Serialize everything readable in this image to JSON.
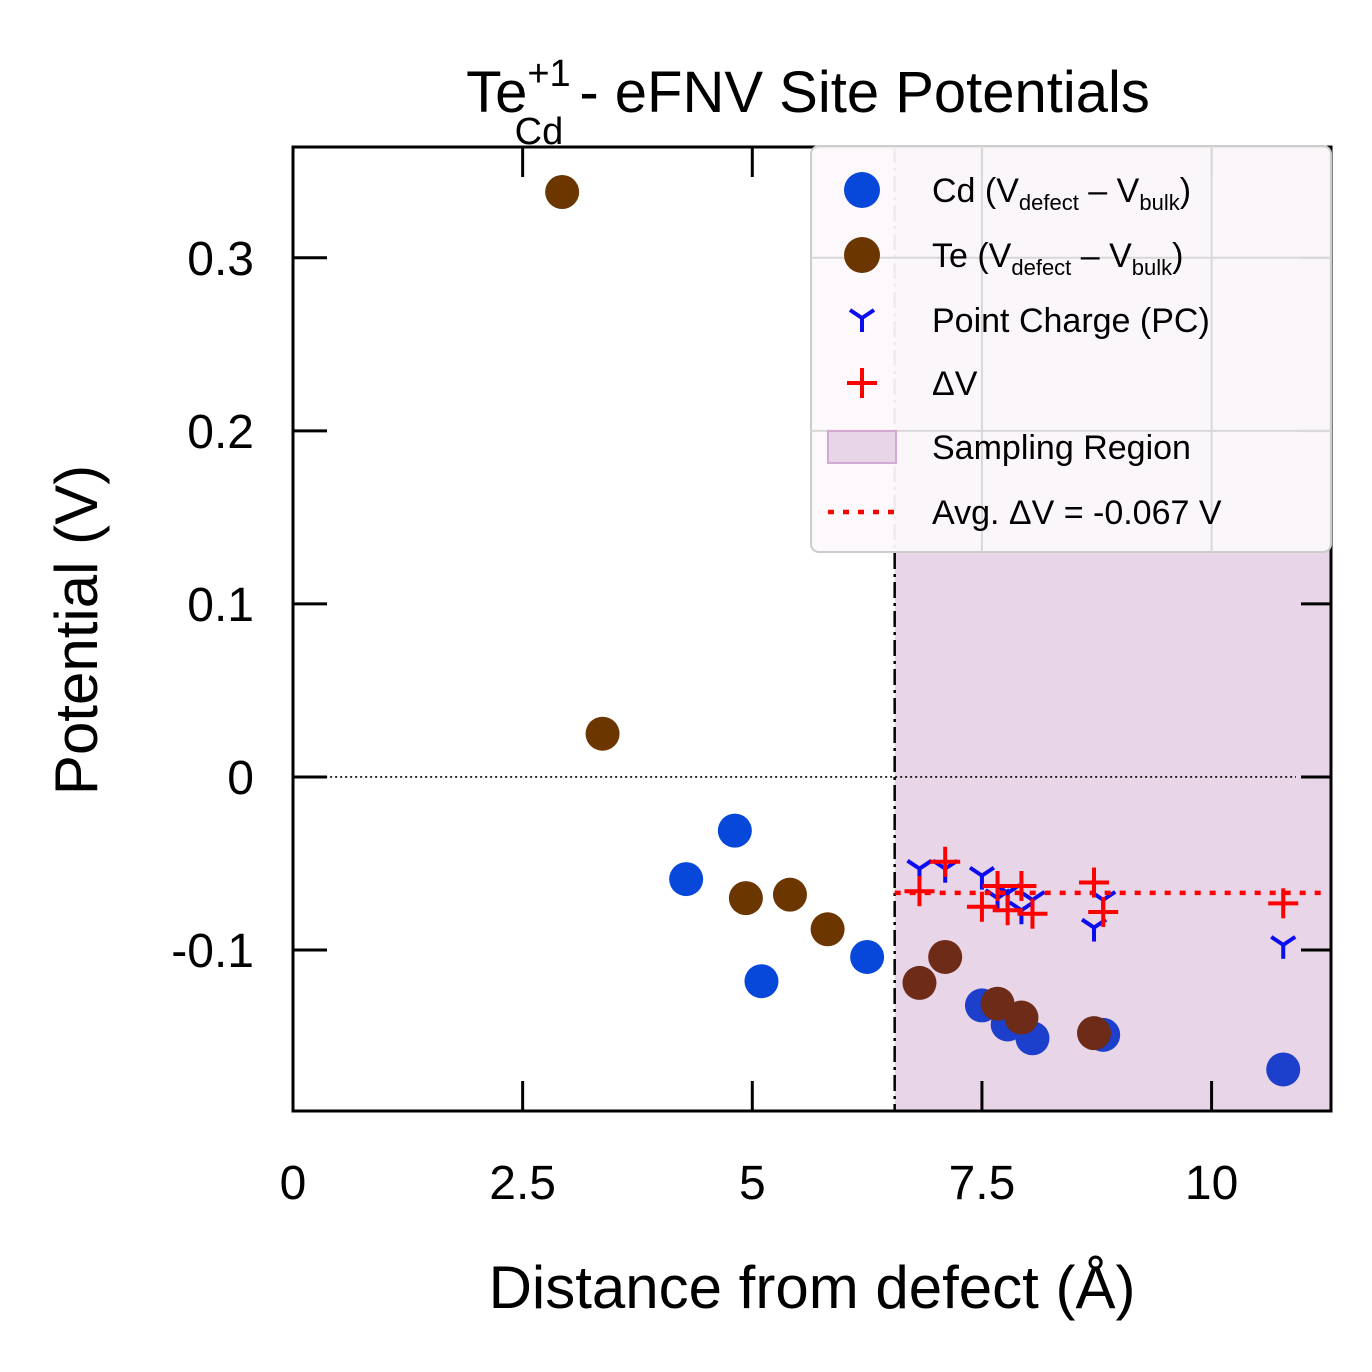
{
  "chart_data": {
    "type": "scatter",
    "title": {
      "base": "Te",
      "superscript": "+1",
      "subscript": "Cd",
      "rest": " - eFNV Site Potentials"
    },
    "xlabel": "Distance from defect (Å)",
    "ylabel": "Potential (V)",
    "xlim": [
      0,
      11.3
    ],
    "ylim": [
      -0.193,
      0.364
    ],
    "x_ticks": [
      {
        "value": 0,
        "label": "0"
      },
      {
        "value": 2.5,
        "label": "2.5"
      },
      {
        "value": 5,
        "label": "5"
      },
      {
        "value": 7.5,
        "label": "7.5"
      },
      {
        "value": 10,
        "label": "10"
      }
    ],
    "y_ticks": [
      {
        "value": 0.3,
        "label": "0.3"
      },
      {
        "value": 0.2,
        "label": "0.2"
      },
      {
        "value": 0.1,
        "label": "0.1"
      },
      {
        "value": 0,
        "label": "0"
      },
      {
        "value": -0.1,
        "label": "-0.1"
      }
    ],
    "grid": "on, light gray, visible within legend area",
    "legend_position": "upper right",
    "zero_line": 0,
    "sampling_region": {
      "x_start": 6.55,
      "label": "Sampling Region",
      "color": "#e9d5e8"
    },
    "average": {
      "value": -0.067,
      "label": "Avg. ΔV = -0.067 V",
      "color": "#ff0000"
    },
    "series": [
      {
        "name": "Cd",
        "legend_main": "Cd (V",
        "legend_sub1": "defect",
        "legend_mid": " – V",
        "legend_sub2": "bulk",
        "legend_end": ")",
        "marker": "circle",
        "color": "#0747d9",
        "sampled_color": "#1c3fcc",
        "points": [
          {
            "x": 4.28,
            "y": -0.059
          },
          {
            "x": 4.81,
            "y": -0.031
          },
          {
            "x": 5.1,
            "y": -0.118
          },
          {
            "x": 6.25,
            "y": -0.104
          },
          {
            "x": 7.5,
            "y": -0.132
          },
          {
            "x": 7.78,
            "y": -0.143
          },
          {
            "x": 8.05,
            "y": -0.151
          },
          {
            "x": 8.82,
            "y": -0.149
          },
          {
            "x": 10.78,
            "y": -0.169
          }
        ]
      },
      {
        "name": "Te",
        "legend_main": "Te (V",
        "legend_sub1": "defect",
        "legend_mid": " – V",
        "legend_sub2": "bulk",
        "legend_end": ")",
        "marker": "circle",
        "color": "#6b3600",
        "sampled_color": "#6e2b18",
        "points": [
          {
            "x": 2.93,
            "y": 0.338
          },
          {
            "x": 3.37,
            "y": 0.025
          },
          {
            "x": 4.93,
            "y": -0.07
          },
          {
            "x": 5.41,
            "y": -0.068
          },
          {
            "x": 5.82,
            "y": -0.088
          },
          {
            "x": 6.82,
            "y": -0.119
          },
          {
            "x": 7.1,
            "y": -0.104
          },
          {
            "x": 7.67,
            "y": -0.131
          },
          {
            "x": 7.93,
            "y": -0.139
          },
          {
            "x": 8.72,
            "y": -0.148
          }
        ]
      },
      {
        "name": "Point Charge (PC)",
        "marker": "tri-down",
        "color": "#0c0cf0",
        "points": [
          {
            "x": 6.82,
            "y": -0.053
          },
          {
            "x": 7.1,
            "y": -0.053
          },
          {
            "x": 7.5,
            "y": -0.057
          },
          {
            "x": 7.67,
            "y": -0.07
          },
          {
            "x": 7.78,
            "y": -0.067
          },
          {
            "x": 7.93,
            "y": -0.077
          },
          {
            "x": 8.05,
            "y": -0.071
          },
          {
            "x": 8.72,
            "y": -0.087
          },
          {
            "x": 8.82,
            "y": -0.071
          },
          {
            "x": 10.78,
            "y": -0.097
          }
        ]
      },
      {
        "name": "ΔV",
        "marker": "plus",
        "color": "#ff0000",
        "points": [
          {
            "x": 6.82,
            "y": -0.066
          },
          {
            "x": 7.1,
            "y": -0.049
          },
          {
            "x": 7.5,
            "y": -0.075
          },
          {
            "x": 7.67,
            "y": -0.063
          },
          {
            "x": 7.78,
            "y": -0.077
          },
          {
            "x": 7.93,
            "y": -0.063
          },
          {
            "x": 8.05,
            "y": -0.079
          },
          {
            "x": 8.72,
            "y": -0.061
          },
          {
            "x": 8.82,
            "y": -0.078
          },
          {
            "x": 10.78,
            "y": -0.073
          }
        ]
      }
    ]
  }
}
